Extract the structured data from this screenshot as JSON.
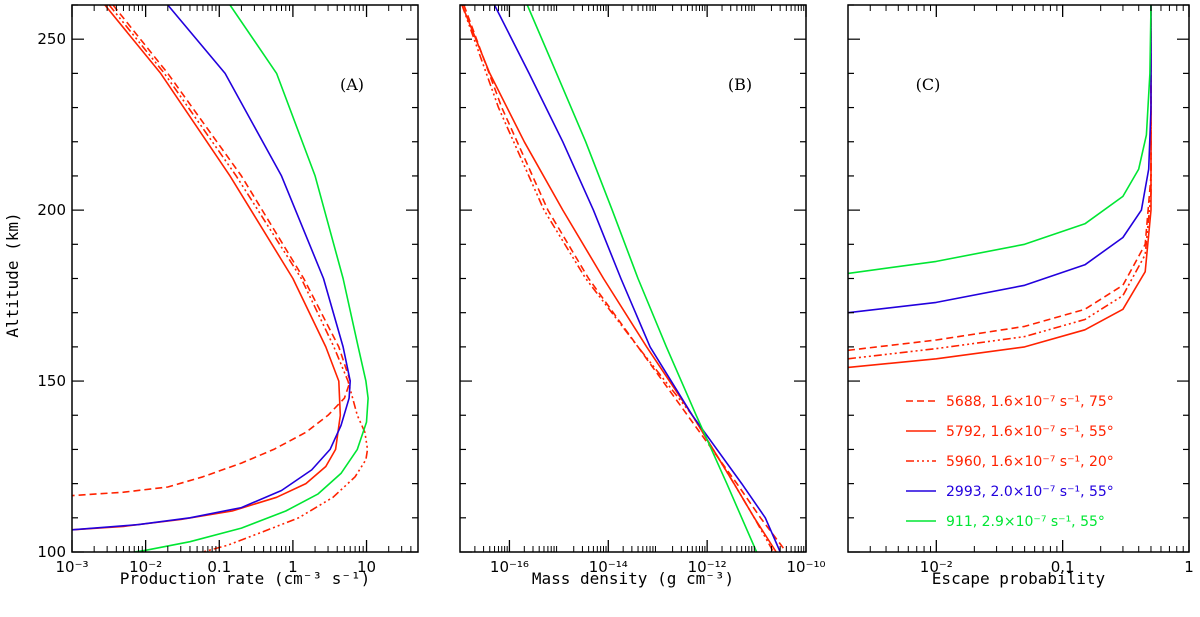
{
  "chart_data": [
    {
      "type": "line",
      "panel_label": "(A)",
      "xlabel": "Production rate (cm⁻³ s⁻¹)",
      "ylabel": "Altitude (km)",
      "xscale": "log",
      "xlim": [
        0.001,
        50
      ],
      "ylim": [
        100,
        260
      ],
      "xticks": [
        {
          "value": 0.001,
          "label": "10⁻³"
        },
        {
          "value": 0.01,
          "label": "10⁻²"
        },
        {
          "value": 0.1,
          "label": "0.1"
        },
        {
          "value": 1,
          "label": "1"
        },
        {
          "value": 10,
          "label": "10"
        }
      ],
      "yticks": [
        {
          "value": 100,
          "label": "100"
        },
        {
          "value": 150,
          "label": "150"
        },
        {
          "value": 200,
          "label": "200"
        },
        {
          "value": 250,
          "label": "250"
        }
      ],
      "series": [
        {
          "id": "s5688",
          "color": "#ff2200",
          "dash": "7,4",
          "points": [
            [
              0.0036,
              260
            ],
            [
              0.02,
              240
            ],
            [
              0.2,
              210
            ],
            [
              1.4,
              180
            ],
            [
              4.2,
              160
            ],
            [
              6.0,
              150
            ],
            [
              5.0,
              145
            ],
            [
              3.0,
              140
            ],
            [
              1.5,
              135
            ],
            [
              0.55,
              130
            ],
            [
              0.2,
              126
            ],
            [
              0.06,
              122
            ],
            [
              0.02,
              119
            ],
            [
              0.005,
              117.5
            ],
            [
              0.001,
              116.5
            ]
          ]
        },
        {
          "id": "s5792",
          "color": "#ff2200",
          "dash": "",
          "points": [
            [
              0.0028,
              260
            ],
            [
              0.016,
              240
            ],
            [
              0.14,
              210
            ],
            [
              1.0,
              180
            ],
            [
              2.8,
              160
            ],
            [
              4.2,
              150
            ],
            [
              4.4,
              140
            ],
            [
              3.8,
              130
            ],
            [
              2.8,
              125
            ],
            [
              1.5,
              120
            ],
            [
              0.6,
              116
            ],
            [
              0.15,
              112
            ],
            [
              0.03,
              109.5
            ],
            [
              0.005,
              107.5
            ],
            [
              0.001,
              106.5
            ]
          ]
        },
        {
          "id": "s5960",
          "color": "#ff2200",
          "dash": "8,3,2,3,2,3,2,3",
          "points": [
            [
              0.0032,
              260
            ],
            [
              0.018,
              240
            ],
            [
              0.17,
              210
            ],
            [
              1.3,
              180
            ],
            [
              3.6,
              160
            ],
            [
              5.6,
              150
            ],
            [
              7.5,
              140
            ],
            [
              9.5,
              135
            ],
            [
              10.3,
              130
            ],
            [
              9.8,
              127
            ],
            [
              7.0,
              122
            ],
            [
              3.5,
              116
            ],
            [
              1.2,
              110
            ],
            [
              0.4,
              106
            ],
            [
              0.13,
              102
            ],
            [
              0.06,
              100
            ]
          ]
        },
        {
          "id": "s2993",
          "color": "#2200dd",
          "dash": "",
          "points": [
            [
              0.02,
              260
            ],
            [
              0.12,
              240
            ],
            [
              0.7,
              210
            ],
            [
              2.6,
              180
            ],
            [
              4.8,
              160
            ],
            [
              6.0,
              150
            ],
            [
              5.8,
              145
            ],
            [
              4.5,
              137
            ],
            [
              3.2,
              130
            ],
            [
              1.8,
              124
            ],
            [
              0.7,
              118
            ],
            [
              0.2,
              113
            ],
            [
              0.04,
              110
            ],
            [
              0.008,
              108
            ],
            [
              0.001,
              106.5
            ]
          ]
        },
        {
          "id": "s911",
          "color": "#00e633",
          "dash": "",
          "points": [
            [
              0.14,
              260
            ],
            [
              0.6,
              240
            ],
            [
              2.0,
              210
            ],
            [
              4.8,
              180
            ],
            [
              7.7,
              160
            ],
            [
              9.8,
              150
            ],
            [
              10.5,
              145
            ],
            [
              10.0,
              138
            ],
            [
              7.5,
              130
            ],
            [
              4.5,
              123
            ],
            [
              2.2,
              117
            ],
            [
              0.8,
              112
            ],
            [
              0.2,
              107
            ],
            [
              0.04,
              103
            ],
            [
              0.01,
              100.5
            ],
            [
              0.007,
              100
            ]
          ]
        }
      ]
    },
    {
      "type": "line",
      "panel_label": "(B)",
      "xlabel": "Mass density (g cm⁻³)",
      "xscale": "log",
      "xlim": [
        1e-17,
        1e-10
      ],
      "ylim": [
        100,
        260
      ],
      "xticks": [
        {
          "value": 1e-16,
          "label": "10⁻¹⁶"
        },
        {
          "value": 1e-14,
          "label": "10⁻¹⁴"
        },
        {
          "value": 1e-12,
          "label": "10⁻¹²"
        },
        {
          "value": 1e-10,
          "label": "10⁻¹⁰"
        }
      ],
      "series": [
        {
          "id": "s5688",
          "color": "#ff2200",
          "dash": "7,4",
          "points": [
            [
              1.2e-17,
              260
            ],
            [
              7e-17,
              230
            ],
            [
              6e-16,
              200
            ],
            [
              4e-15,
              180
            ],
            [
              4e-14,
              160
            ],
            [
              4e-13,
              140
            ],
            [
              4e-12,
              120
            ],
            [
              1.2e-11,
              110
            ],
            [
              4e-11,
              100
            ]
          ]
        },
        {
          "id": "s5792",
          "color": "#ff2200",
          "dash": "",
          "points": [
            [
              1.1e-17,
              260
            ],
            [
              4e-17,
              240
            ],
            [
              2e-16,
              220
            ],
            [
              1.2e-15,
              200
            ],
            [
              8e-15,
              180
            ],
            [
              6e-14,
              160
            ],
            [
              5e-13,
              140
            ],
            [
              3.5e-12,
              120
            ],
            [
              9e-12,
              110
            ],
            [
              2.5e-11,
              100
            ]
          ]
        },
        {
          "id": "s5960",
          "color": "#ff2200",
          "dash": "8,3,2,3,2,3,2,3",
          "points": [
            [
              1.1e-17,
              260
            ],
            [
              6e-17,
              230
            ],
            [
              5e-16,
              200
            ],
            [
              3.5e-15,
              180
            ],
            [
              4e-14,
              160
            ],
            [
              5e-13,
              140
            ],
            [
              3.5e-12,
              120
            ],
            [
              9e-12,
              110
            ],
            [
              2.2e-11,
              100
            ]
          ]
        },
        {
          "id": "s2993",
          "color": "#2200dd",
          "dash": "",
          "points": [
            [
              5e-17,
              260
            ],
            [
              2.5e-16,
              240
            ],
            [
              1.2e-15,
              220
            ],
            [
              5e-15,
              200
            ],
            [
              1.8e-14,
              180
            ],
            [
              7e-14,
              160
            ],
            [
              5e-13,
              140
            ],
            [
              5e-12,
              120
            ],
            [
              1.5e-11,
              110
            ],
            [
              3e-11,
              100
            ]
          ]
        },
        {
          "id": "s911",
          "color": "#00e633",
          "dash": "",
          "points": [
            [
              2.3e-16,
              260
            ],
            [
              9e-16,
              240
            ],
            [
              3.5e-15,
              220
            ],
            [
              1.2e-14,
              200
            ],
            [
              4e-14,
              180
            ],
            [
              1.5e-13,
              160
            ],
            [
              6e-13,
              140
            ],
            [
              2.5e-12,
              120
            ],
            [
              5e-12,
              110
            ],
            [
              1e-11,
              100
            ]
          ]
        }
      ]
    },
    {
      "type": "line",
      "panel_label": "(C)",
      "xlabel": "Escape probability",
      "xscale": "log",
      "xlim": [
        0.002,
        1
      ],
      "ylim": [
        100,
        260
      ],
      "xticks": [
        {
          "value": 0.01,
          "label": "10⁻²"
        },
        {
          "value": 0.1,
          "label": "0.1"
        },
        {
          "value": 1,
          "label": "1"
        }
      ],
      "series": [
        {
          "id": "s5688",
          "color": "#ff2200",
          "dash": "7,4",
          "points": [
            [
              0.002,
              159
            ],
            [
              0.01,
              162
            ],
            [
              0.05,
              166
            ],
            [
              0.15,
              171
            ],
            [
              0.3,
              178
            ],
            [
              0.45,
              190
            ],
            [
              0.5,
              210
            ],
            [
              0.5,
              260
            ]
          ]
        },
        {
          "id": "s5792",
          "color": "#ff2200",
          "dash": "",
          "points": [
            [
              0.002,
              154
            ],
            [
              0.01,
              156.5
            ],
            [
              0.05,
              160
            ],
            [
              0.15,
              165
            ],
            [
              0.3,
              171
            ],
            [
              0.45,
              182
            ],
            [
              0.5,
              200
            ],
            [
              0.5,
              260
            ]
          ]
        },
        {
          "id": "s5960",
          "color": "#ff2200",
          "dash": "8,3,2,3,2,3,2,3",
          "points": [
            [
              0.002,
              156.5
            ],
            [
              0.01,
              159.5
            ],
            [
              0.05,
              163
            ],
            [
              0.15,
              168
            ],
            [
              0.3,
              175
            ],
            [
              0.45,
              187
            ],
            [
              0.5,
              205
            ],
            [
              0.5,
              260
            ]
          ]
        },
        {
          "id": "s2993",
          "color": "#2200dd",
          "dash": "",
          "points": [
            [
              0.002,
              170
            ],
            [
              0.01,
              173
            ],
            [
              0.05,
              178
            ],
            [
              0.15,
              184
            ],
            [
              0.3,
              192
            ],
            [
              0.42,
              200
            ],
            [
              0.48,
              212
            ],
            [
              0.5,
              230
            ],
            [
              0.5,
              260
            ]
          ]
        },
        {
          "id": "s911",
          "color": "#00e633",
          "dash": "",
          "points": [
            [
              0.002,
              181.5
            ],
            [
              0.01,
              185
            ],
            [
              0.05,
              190
            ],
            [
              0.15,
              196
            ],
            [
              0.3,
              204
            ],
            [
              0.4,
              212
            ],
            [
              0.46,
              222
            ],
            [
              0.49,
              240
            ],
            [
              0.5,
              260
            ]
          ]
        }
      ]
    }
  ],
  "legend": {
    "placement": "bottom-right of panel C",
    "entries": [
      {
        "series": "s5688",
        "color": "#ff2200",
        "dash": "7,4",
        "label": "5688, 1.6×10⁻⁷ s⁻¹, 75°"
      },
      {
        "series": "s5792",
        "color": "#ff2200",
        "dash": "",
        "label": "5792, 1.6×10⁻⁷ s⁻¹, 55°"
      },
      {
        "series": "s5960",
        "color": "#ff2200",
        "dash": "8,3,2,3,2,3,2,3",
        "label": "5960, 1.6×10⁻⁷ s⁻¹, 20°"
      },
      {
        "series": "s2993",
        "color": "#2200dd",
        "dash": "",
        "label": "2993, 2.0×10⁻⁷ s⁻¹, 55°"
      },
      {
        "series": "s911",
        "color": "#00e633",
        "dash": "",
        "label": "911, 2.9×10⁻⁷ s⁻¹, 55°"
      }
    ]
  }
}
